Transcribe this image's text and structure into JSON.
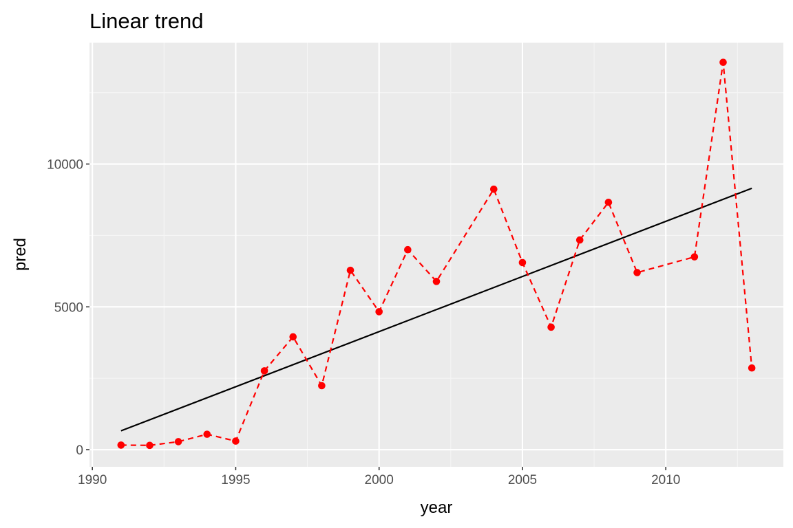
{
  "colors": {
    "panel_background": "#EBEBEB",
    "grid_major": "#FFFFFF",
    "grid_minor": "#F5F5F5",
    "tick_text": "#4D4D4D",
    "tick_mark": "#333333",
    "series_color": "#FF0000",
    "trend_color": "#000000"
  },
  "chart_data": {
    "type": "line",
    "title": "Linear trend",
    "xlabel": "year",
    "ylabel": "pred",
    "xlim": [
      1989.9,
      2014.1
    ],
    "ylim": [
      -600,
      14250
    ],
    "x_ticks": [
      1990,
      1995,
      2000,
      2005,
      2010
    ],
    "x_tick_labels": [
      "1990",
      "1995",
      "2000",
      "2005",
      "2010"
    ],
    "x_minor_ticks": [
      1992.5,
      1997.5,
      2002.5,
      2007.5,
      2012.5
    ],
    "y_ticks": [
      0,
      5000,
      10000
    ],
    "y_tick_labels": [
      "0",
      "5000",
      "10000"
    ],
    "y_minor_ticks": [
      2500,
      7500,
      12500
    ],
    "grid": true,
    "legend": "none",
    "series": [
      {
        "style": "dashed-line-with-points",
        "x": [
          1991,
          1992,
          1993,
          1994,
          1995,
          1996,
          1997,
          1998,
          1999,
          2000,
          2001,
          2002,
          2004,
          2005,
          2006,
          2007,
          2008,
          2009,
          2011,
          2012,
          2013
        ],
        "y": [
          160,
          150,
          280,
          540,
          300,
          2760,
          3950,
          2240,
          6280,
          4830,
          7000,
          5890,
          9120,
          6550,
          4290,
          7340,
          8660,
          6200,
          6750,
          13560,
          2860
        ]
      },
      {
        "style": "solid-line",
        "x": [
          1991,
          2013
        ],
        "y": [
          660,
          9150
        ]
      }
    ]
  }
}
